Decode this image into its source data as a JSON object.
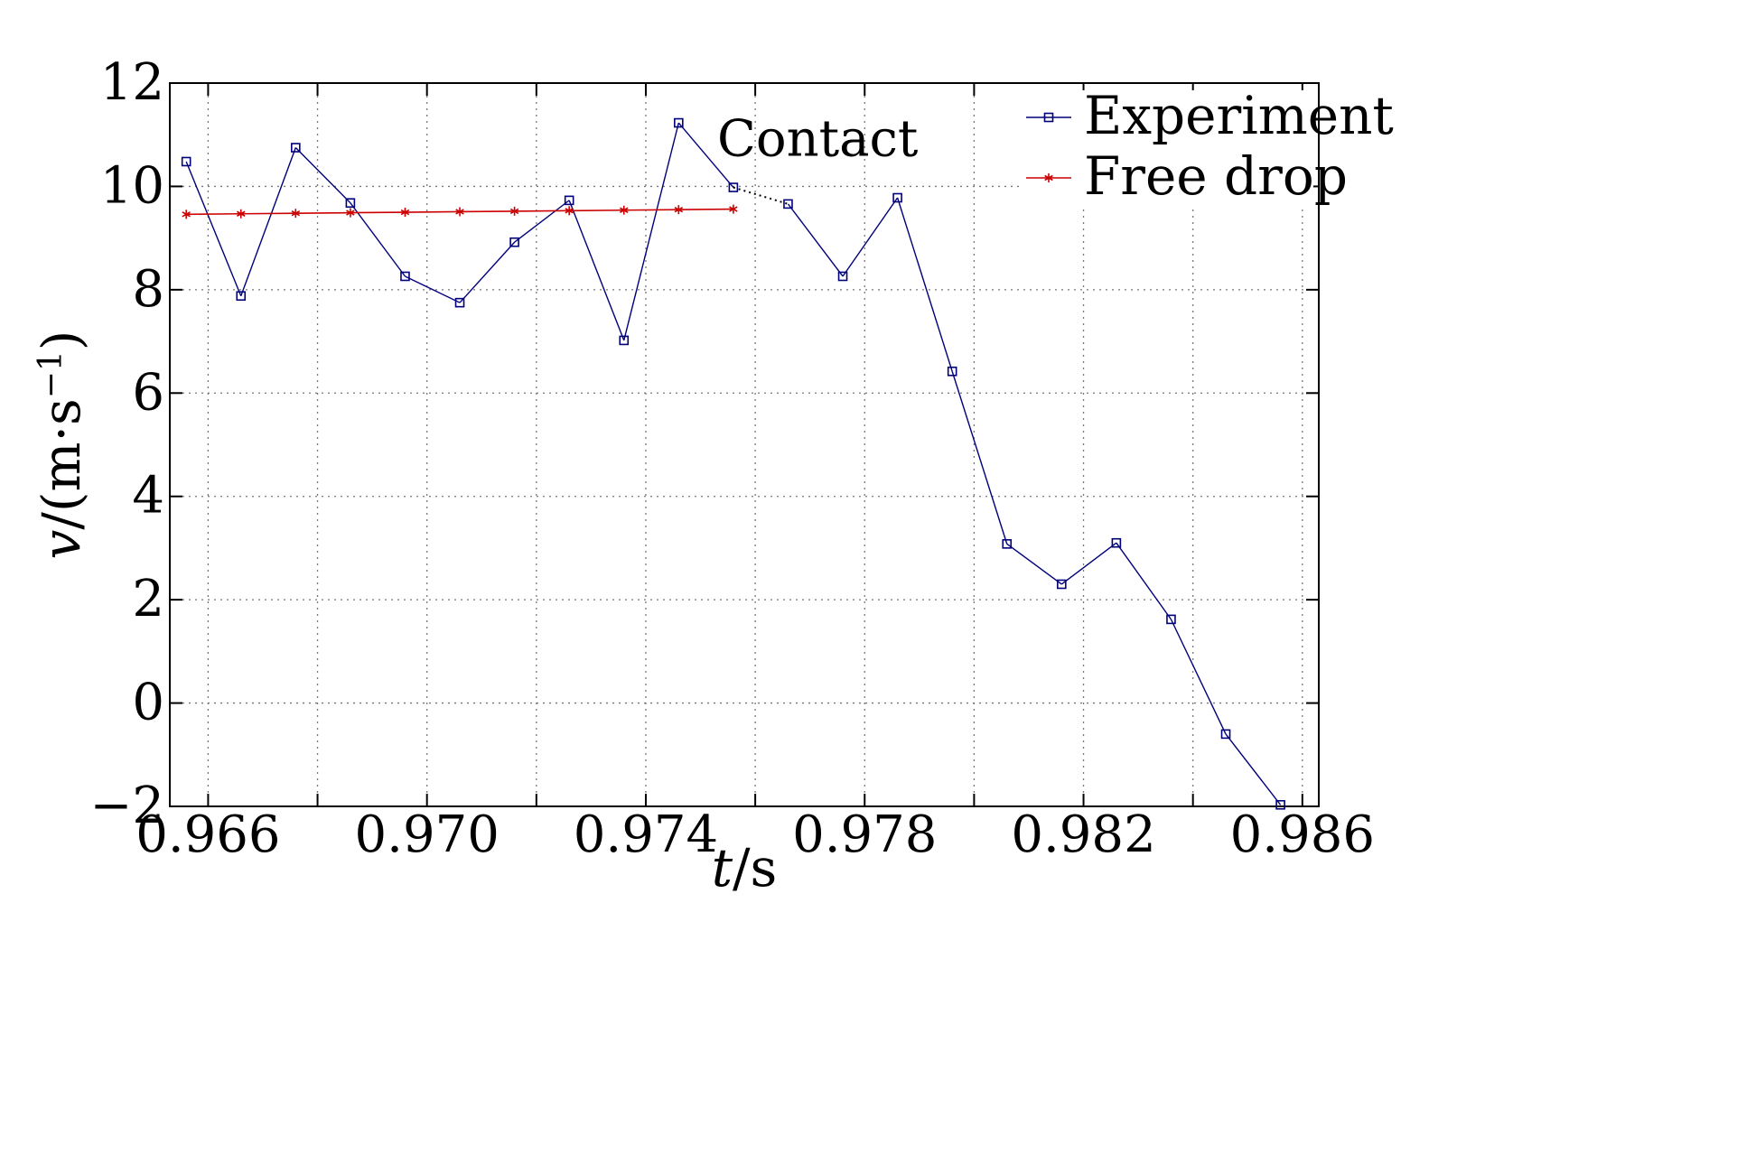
{
  "chart_data": {
    "type": "line",
    "xlabel": {
      "italic": "t",
      "rest": "/s"
    },
    "ylabel": {
      "italic": "v",
      "rest": "/(m·s",
      "sup": "−1",
      "close": ")"
    },
    "xlim": [
      0.9653,
      0.9863
    ],
    "ylim": [
      -2,
      12
    ],
    "xticks": [
      0.966,
      0.97,
      0.974,
      0.978,
      0.982,
      0.986
    ],
    "xtick_labels": [
      "0.966",
      "0.970",
      "0.974",
      "0.978",
      "0.982",
      "0.986"
    ],
    "xgrid": [
      0.966,
      0.968,
      0.97,
      0.972,
      0.974,
      0.976,
      0.978,
      0.98,
      0.982,
      0.984,
      0.986
    ],
    "yticks": [
      -2,
      0,
      2,
      4,
      6,
      8,
      10,
      12
    ],
    "ytick_labels": [
      "−2",
      "0",
      "2",
      "4",
      "6",
      "8",
      "10",
      "12"
    ],
    "grid": true,
    "legend_position": "top-right",
    "annotation": {
      "text": "Contact",
      "x": 0.9758,
      "y": 10.8
    },
    "series": [
      {
        "name": "Experiment",
        "color": "#00007a",
        "marker": "square",
        "x": [
          0.9656,
          0.9666,
          0.9676,
          0.9686,
          0.9696,
          0.9706,
          0.9716,
          0.9726,
          0.9736,
          0.9746,
          0.9756,
          0.9766,
          0.9776,
          0.9786,
          0.9796,
          0.9806,
          0.9816,
          0.9826,
          0.9836,
          0.9846,
          0.9856
        ],
        "y": [
          10.48,
          7.88,
          10.75,
          9.68,
          8.26,
          7.75,
          8.92,
          9.73,
          7.02,
          11.23,
          9.98,
          9.66,
          8.26,
          9.78,
          6.42,
          3.08,
          2.3,
          3.1,
          1.62,
          -0.6,
          -1.97
        ]
      },
      {
        "name": "Free drop",
        "color": "#cc0000",
        "marker": "star",
        "x": [
          0.9656,
          0.9666,
          0.9676,
          0.9686,
          0.9696,
          0.9706,
          0.9716,
          0.9726,
          0.9736,
          0.9746,
          0.9756
        ],
        "y": [
          9.46,
          9.47,
          9.48,
          9.49,
          9.5,
          9.51,
          9.52,
          9.53,
          9.54,
          9.55,
          9.56
        ]
      }
    ]
  }
}
